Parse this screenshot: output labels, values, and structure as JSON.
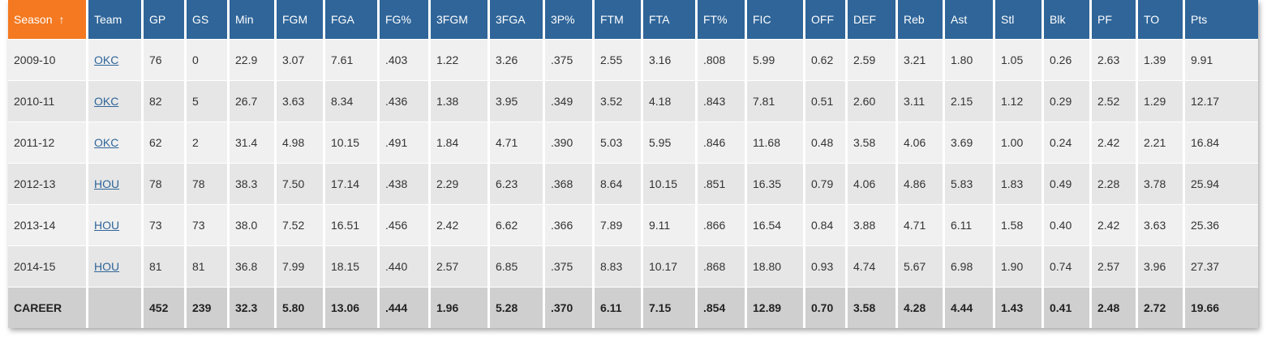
{
  "headers": [
    "Season",
    "Team",
    "GP",
    "GS",
    "Min",
    "FGM",
    "FGA",
    "FG%",
    "3FGM",
    "3FGA",
    "3P%",
    "FTM",
    "FTA",
    "FT%",
    "FIC",
    "OFF",
    "DEF",
    "Reb",
    "Ast",
    "Stl",
    "Blk",
    "PF",
    "TO",
    "Pts"
  ],
  "sort": {
    "column": "Season",
    "arrow": "↑",
    "color": "#f47920"
  },
  "header_color": "#2f6599",
  "rows": [
    [
      "2009-10",
      "OKC",
      "76",
      "0",
      "22.9",
      "3.07",
      "7.61",
      ".403",
      "1.22",
      "3.26",
      ".375",
      "2.55",
      "3.16",
      ".808",
      "5.99",
      "0.62",
      "2.59",
      "3.21",
      "1.80",
      "1.05",
      "0.26",
      "2.63",
      "1.39",
      "9.91"
    ],
    [
      "2010-11",
      "OKC",
      "82",
      "5",
      "26.7",
      "3.63",
      "8.34",
      ".436",
      "1.38",
      "3.95",
      ".349",
      "3.52",
      "4.18",
      ".843",
      "7.81",
      "0.51",
      "2.60",
      "3.11",
      "2.15",
      "1.12",
      "0.29",
      "2.52",
      "1.29",
      "12.17"
    ],
    [
      "2011-12",
      "OKC",
      "62",
      "2",
      "31.4",
      "4.98",
      "10.15",
      ".491",
      "1.84",
      "4.71",
      ".390",
      "5.03",
      "5.95",
      ".846",
      "11.68",
      "0.48",
      "3.58",
      "4.06",
      "3.69",
      "1.00",
      "0.24",
      "2.42",
      "2.21",
      "16.84"
    ],
    [
      "2012-13",
      "HOU",
      "78",
      "78",
      "38.3",
      "7.50",
      "17.14",
      ".438",
      "2.29",
      "6.23",
      ".368",
      "8.64",
      "10.15",
      ".851",
      "16.35",
      "0.79",
      "4.06",
      "4.86",
      "5.83",
      "1.83",
      "0.49",
      "2.28",
      "3.78",
      "25.94"
    ],
    [
      "2013-14",
      "HOU",
      "73",
      "73",
      "38.0",
      "7.52",
      "16.51",
      ".456",
      "2.42",
      "6.62",
      ".366",
      "7.89",
      "9.11",
      ".866",
      "16.54",
      "0.84",
      "3.88",
      "4.71",
      "6.11",
      "1.58",
      "0.40",
      "2.42",
      "3.63",
      "25.36"
    ],
    [
      "2014-15",
      "HOU",
      "81",
      "81",
      "36.8",
      "7.99",
      "18.15",
      ".440",
      "2.57",
      "6.85",
      ".375",
      "8.83",
      "10.17",
      ".868",
      "18.80",
      "0.93",
      "4.74",
      "5.67",
      "6.98",
      "1.90",
      "0.74",
      "2.57",
      "3.96",
      "27.37"
    ]
  ],
  "career": [
    "CAREER",
    "",
    "452",
    "239",
    "32.3",
    "5.80",
    "13.06",
    ".444",
    "1.96",
    "5.28",
    ".370",
    "6.11",
    "7.15",
    ".854",
    "12.89",
    "0.70",
    "3.58",
    "4.28",
    "4.44",
    "1.43",
    "0.41",
    "2.48",
    "2.72",
    "19.66"
  ]
}
